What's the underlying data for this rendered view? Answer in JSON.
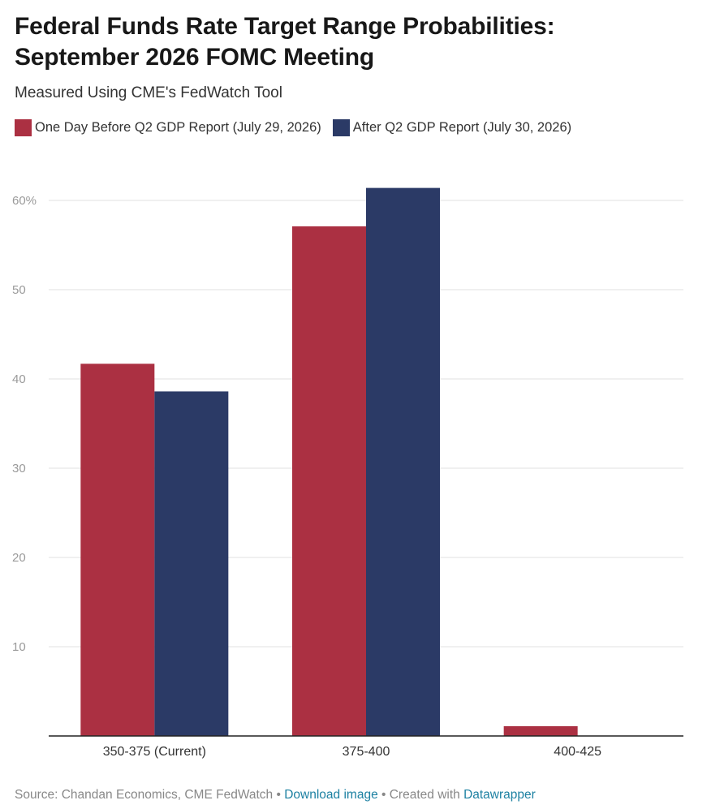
{
  "title_line1": "Federal Funds Rate Target Range Probabilities:",
  "title_line2": "September 2026 FOMC Meeting",
  "subtitle": "Measured Using CME's FedWatch Tool",
  "footer": {
    "source": "Source: Chandan Economics, CME FedWatch",
    "sep1": " • ",
    "download": "Download image",
    "sep2": " • Created with ",
    "datawrapper": "Datawrapper"
  },
  "chart_data": {
    "type": "bar",
    "title": "Federal Funds Rate Target Range Probabilities: September 2026 FOMC Meeting",
    "subtitle": "Measured Using CME's FedWatch Tool",
    "categories": [
      "350-375 (Current)",
      "375-400",
      "400-425"
    ],
    "series": [
      {
        "name": "One Day Before Q2 GDP Report (July 29, 2026)",
        "color": "#ab3042",
        "values": [
          41.7,
          57.1,
          1.1
        ]
      },
      {
        "name": "After Q2 GDP Report (July 30, 2026)",
        "color": "#2b3a66",
        "values": [
          38.6,
          61.4,
          0
        ]
      }
    ],
    "y_ticks": [
      {
        "value": 10,
        "label": "10"
      },
      {
        "value": 20,
        "label": "20"
      },
      {
        "value": 30,
        "label": "30"
      },
      {
        "value": 40,
        "label": "40"
      },
      {
        "value": 50,
        "label": "50"
      },
      {
        "value": 60,
        "label": "60%"
      }
    ],
    "ylim": [
      0,
      60
    ],
    "grid": true,
    "legend_position": "top-left"
  }
}
